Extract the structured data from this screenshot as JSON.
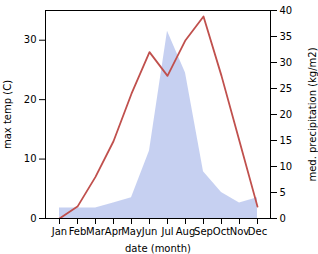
{
  "chart_data": {
    "type": "line",
    "xlabel": "date (month)",
    "ylabel": "max temp (C)",
    "y2label": "med. precipitation (kg/m2)",
    "categories": [
      "Jan",
      "Feb",
      "Mar",
      "Apr",
      "May",
      "Jun",
      "Jul",
      "Aug",
      "Sep",
      "Oct",
      "Nov",
      "Dec"
    ],
    "series": [
      {
        "type": "area",
        "axis": "y2",
        "color": "#bcc8ee",
        "values": [
          2,
          2,
          2,
          3,
          4,
          13,
          36,
          28,
          9,
          5,
          3,
          4
        ]
      },
      {
        "type": "line",
        "color": "#c0504d",
        "values": [
          0,
          2,
          7,
          13,
          21,
          28,
          24,
          30,
          34,
          24,
          13,
          2
        ]
      }
    ],
    "ylim": [
      0,
      35
    ],
    "yticks": [
      0,
      10,
      20,
      30
    ],
    "y2lim": [
      0,
      40
    ],
    "y2ticks": [
      0,
      5,
      10,
      15,
      20,
      25,
      30,
      35,
      40
    ]
  }
}
